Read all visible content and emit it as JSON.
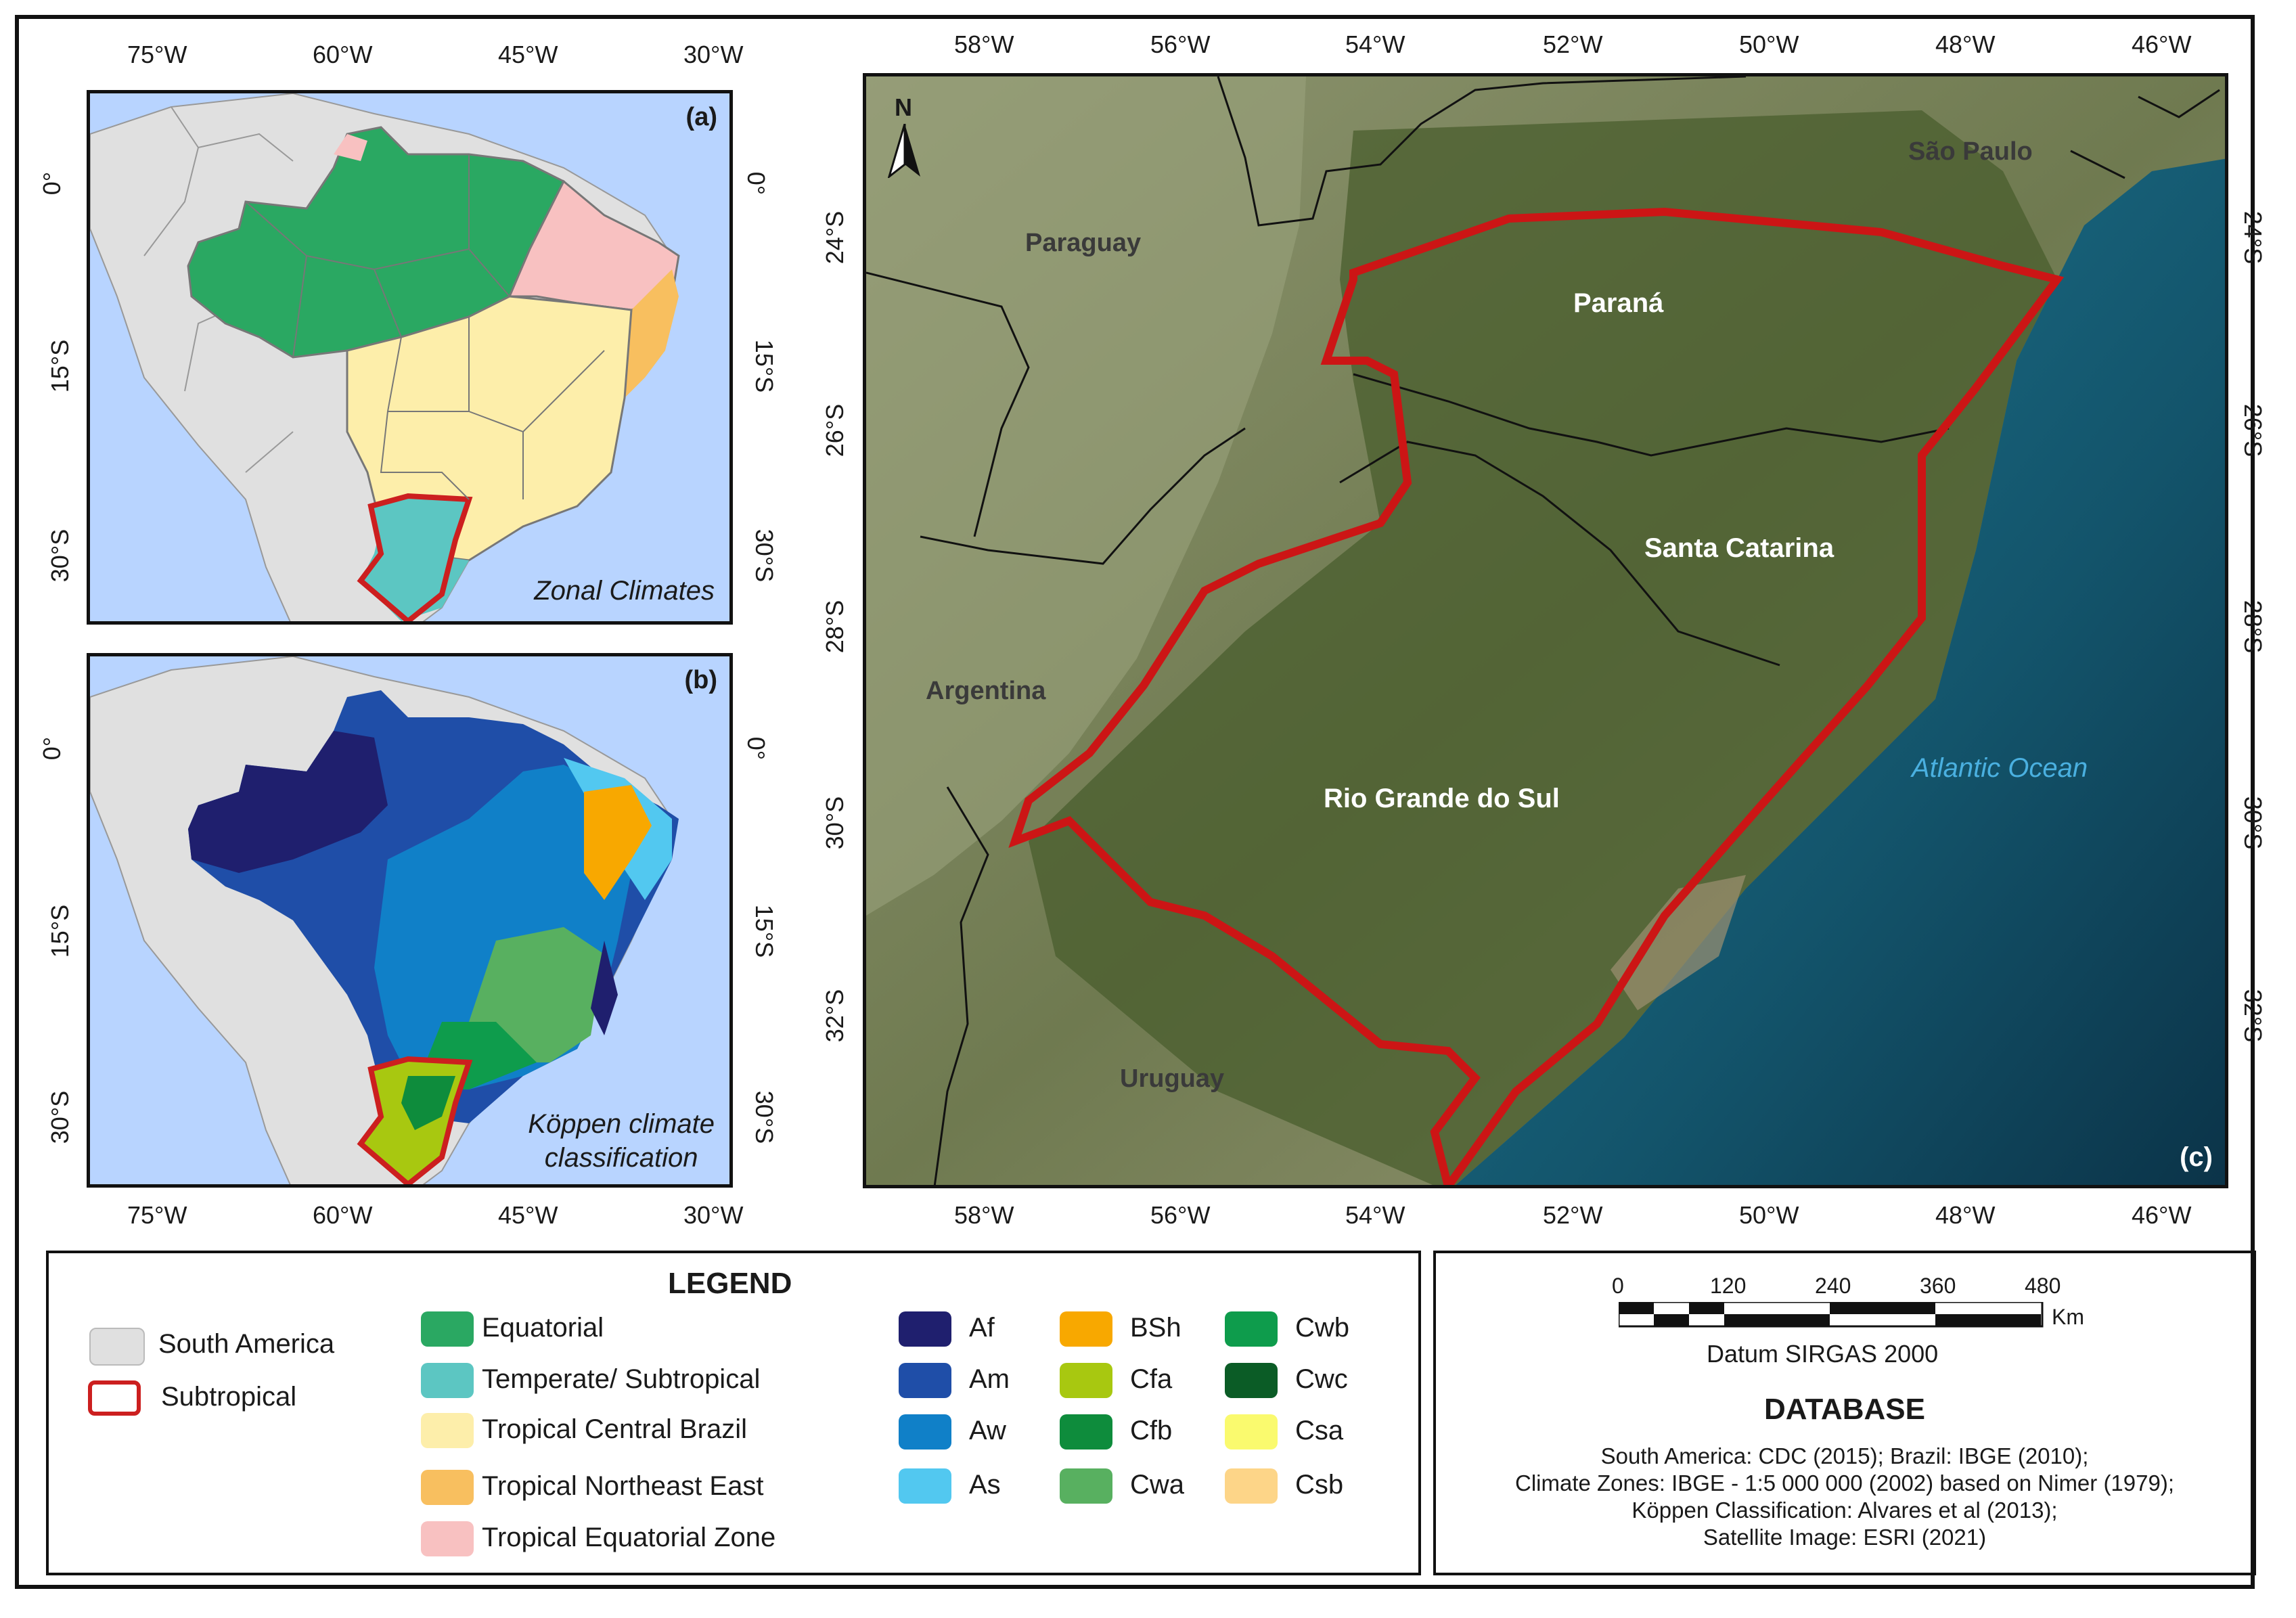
{
  "panel_a": {
    "tag": "(a)",
    "caption": "Zonal Climates",
    "top_lon_ticks": [
      "75°W",
      "60°W",
      "45°W",
      "30°W"
    ],
    "lat_ticks": [
      "0°",
      "15°S",
      "30°S"
    ]
  },
  "panel_b": {
    "tag": "(b)",
    "caption_line1": "Köppen climate",
    "caption_line2": "classification",
    "bottom_lon_ticks": [
      "75°W",
      "60°W",
      "45°W",
      "30°W"
    ],
    "lat_ticks": [
      "0°",
      "15°S",
      "30°S"
    ]
  },
  "panel_c": {
    "tag": "(c)",
    "north": "N",
    "lon_ticks": [
      "58°W",
      "56°W",
      "54°W",
      "52°W",
      "50°W",
      "48°W",
      "46°W"
    ],
    "lat_ticks": [
      "24°S",
      "26°S",
      "28°S",
      "30°S",
      "32°S"
    ],
    "labels": {
      "sao_paulo": "São Paulo",
      "paraguay": "Paraguay",
      "parana": "Paraná",
      "santa_catarina": "Santa Catarina",
      "argentina": "Argentina",
      "rio_grande": "Rio Grande do Sul",
      "atlantic": "Atlantic Ocean",
      "uruguay": "Uruguay"
    }
  },
  "legend": {
    "title": "LEGEND",
    "boundary_items": [
      {
        "label": "South America",
        "color": "#e0e0e0"
      },
      {
        "label": "Subtropical",
        "color": "#cc1f1f"
      }
    ],
    "zonal_items": [
      {
        "label": "Equatorial",
        "color": "#2aa862"
      },
      {
        "label": "Temperate/ Subtropical",
        "color": "#5cc6c2"
      },
      {
        "label": "Tropical Central Brazil",
        "color": "#fdeeaa"
      },
      {
        "label": "Tropical Northeast East",
        "color": "#f8bf5f"
      },
      {
        "label": "Tropical Equatorial Zone",
        "color": "#f8c1c1"
      }
    ],
    "koppen_col1": [
      {
        "label": "Af",
        "color": "#1f1f6e"
      },
      {
        "label": "Am",
        "color": "#1f4ea8"
      },
      {
        "label": "Aw",
        "color": "#1080c8"
      },
      {
        "label": "As",
        "color": "#52c8f0"
      }
    ],
    "koppen_col2": [
      {
        "label": "BSh",
        "color": "#f8a800"
      },
      {
        "label": "Cfa",
        "color": "#a8c810"
      },
      {
        "label": "Cfb",
        "color": "#0e8c3c"
      },
      {
        "label": "Cwa",
        "color": "#58b060"
      }
    ],
    "koppen_col3": [
      {
        "label": "Cwb",
        "color": "#0e9c4c"
      },
      {
        "label": "Cwc",
        "color": "#0b5c26"
      },
      {
        "label": "Csa",
        "color": "#fafa6e"
      },
      {
        "label": "Csb",
        "color": "#fdd588"
      }
    ]
  },
  "scale": {
    "ticks": [
      "0",
      "120",
      "240",
      "360",
      "480"
    ],
    "unit": "Km",
    "datum": "Datum SIRGAS 2000"
  },
  "database": {
    "title": "DATABASE",
    "lines": [
      "South America: CDC (2015); Brazil: IBGE (2010);",
      "Climate Zones: IBGE - 1:5 000 000 (2002) based on Nimer (1979);",
      "Köppen Classification: Alvares et al (2013);",
      "Satellite Image: ESRI (2021)"
    ]
  }
}
